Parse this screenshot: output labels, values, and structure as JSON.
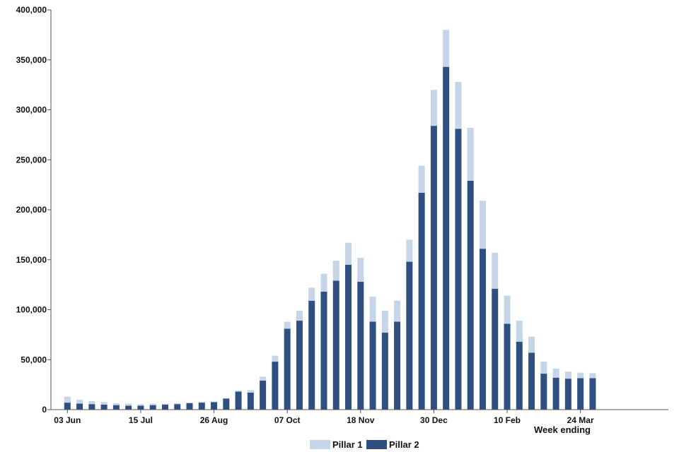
{
  "chart_data": {
    "type": "bar",
    "stacked": true,
    "xlabel": "Week ending",
    "ylabel": "",
    "ylim": [
      0,
      400000
    ],
    "yticks": [
      0,
      50000,
      100000,
      150000,
      200000,
      250000,
      300000,
      350000,
      400000
    ],
    "ytick_labels": [
      "0",
      "50,000",
      "100,000",
      "150,000",
      "200,000",
      "250,000",
      "300,000",
      "350,000",
      "400,000"
    ],
    "xtick_labels": [
      "03 Jun",
      "15 Jul",
      "26 Aug",
      "07 Oct",
      "18 Nov",
      "30 Dec",
      "10 Feb",
      "24 Mar"
    ],
    "xtick_weeks": [
      0,
      6,
      12,
      18,
      24,
      30,
      36,
      42
    ],
    "grid": false,
    "legend_position": "bottom-center",
    "colors": {
      "Pillar 1": "#c6d5e8",
      "Pillar 2": "#2e4f80",
      "axis": "#555555"
    },
    "series": [
      {
        "name": "Pillar 1",
        "values": [
          6000,
          4000,
          3000,
          2500,
          2000,
          2000,
          1500,
          1500,
          1000,
          800,
          600,
          600,
          600,
          600,
          1000,
          2500,
          4000,
          6000,
          7000,
          10000,
          13000,
          18000,
          20000,
          22000,
          24000,
          25000,
          22000,
          21000,
          22000,
          27000,
          36000,
          37000,
          47000,
          53000,
          48000,
          36000,
          28000,
          21000,
          16000,
          12000,
          9000,
          7000,
          5500,
          5000
        ]
      },
      {
        "name": "Pillar 2",
        "values": [
          7000,
          6000,
          5500,
          5000,
          4500,
          4000,
          4000,
          4500,
          5000,
          5500,
          6500,
          7000,
          7500,
          11000,
          18000,
          17000,
          29000,
          48000,
          81000,
          89000,
          109000,
          118000,
          129000,
          145000,
          128000,
          88000,
          77000,
          88000,
          148000,
          217000,
          284000,
          343000,
          281000,
          229000,
          161000,
          121000,
          86000,
          68000,
          57000,
          36000,
          32000,
          31000,
          31500,
          31500
        ]
      }
    ]
  }
}
